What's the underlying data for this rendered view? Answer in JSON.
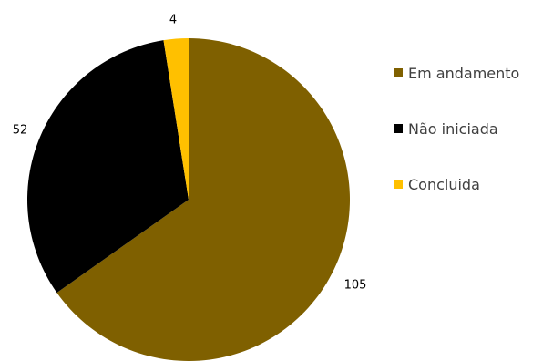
{
  "chart_data": {
    "type": "pie",
    "title": "",
    "categories": [
      "Em andamento",
      "Não iniciada",
      "Concluida"
    ],
    "values": [
      105,
      52,
      4
    ],
    "data_labels": [
      "105",
      "52",
      "4"
    ],
    "colors": [
      "#7F6000",
      "#000000",
      "#FFC000"
    ],
    "start_angle_deg": 0,
    "direction": "clockwise",
    "legend": {
      "placement": "right",
      "entries": [
        "Em andamento",
        "Não iniciada",
        "Concluida"
      ]
    }
  }
}
